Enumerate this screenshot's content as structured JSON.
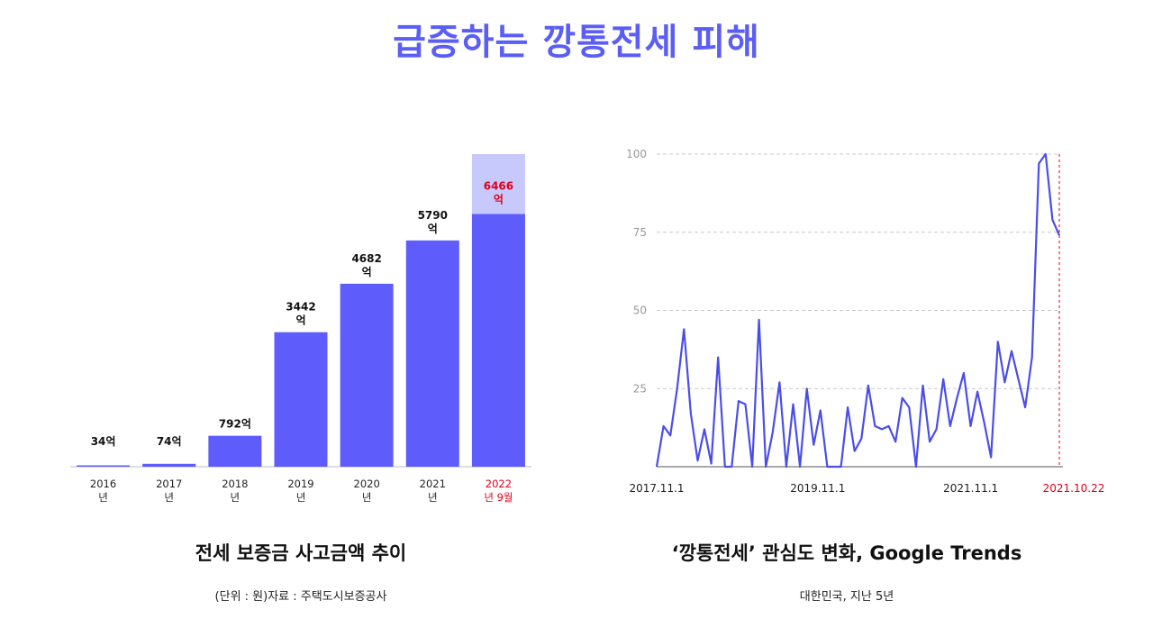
{
  "page_title": "급증하는 깡통전세 피해",
  "left_caption": {
    "title": "전세 보증금 사고금액 추이",
    "source": "(단위 : 원)자료 : 주택도시보증공사"
  },
  "right_caption": {
    "title": "‘깡통전세’ 관심도 변화, Google Trends",
    "source": "대한민국, 지난 5년"
  },
  "colors": {
    "accent": "#5b5ef6",
    "bar": "#5e5cfb",
    "bar_light": "#c7c8fb",
    "highlight": "#e0001b",
    "line": "#4a4ee8",
    "grid": "#c8c8c8",
    "axis": "#999999"
  },
  "chart_data": [
    {
      "type": "bar",
      "title": "전세 보증금 사고금액 추이",
      "unit": "억",
      "categories": [
        "2016\n년",
        "2017\n년",
        "2018\n년",
        "2019\n년",
        "2020\n년",
        "2021\n년",
        "2022\n년 9월"
      ],
      "values": [
        34,
        74,
        792,
        3442,
        4682,
        5790,
        6466
      ],
      "labels": [
        "34억",
        "74억",
        "792억",
        "3442\n억",
        "4682\n억",
        "5790\n억",
        "6466\n억"
      ],
      "highlight_index": 6,
      "projected_total": 8000,
      "ylim": [
        0,
        8000
      ],
      "grid": false
    },
    {
      "type": "line",
      "title": "‘깡통전세’ 관심도 변화, Google Trends",
      "subtitle": "대한민국, 지난 5년",
      "x_labels": [
        "2017.11.1",
        "2019.11.1",
        "2021.11.1",
        "2021.10.22"
      ],
      "x_label_positions": [
        0,
        0.4,
        0.78,
        1.0
      ],
      "highlight_x_label": "2021.10.22",
      "yticks": [
        25,
        50,
        75,
        100
      ],
      "ylim": [
        0,
        100
      ],
      "grid": true,
      "values": [
        0,
        13,
        10,
        25,
        44,
        17,
        2,
        12,
        1,
        35,
        0,
        0,
        21,
        20,
        0,
        47,
        0,
        11,
        27,
        0,
        20,
        0,
        25,
        7,
        18,
        0,
        0,
        0,
        19,
        5,
        9,
        26,
        13,
        12,
        13,
        8,
        22,
        19,
        0,
        26,
        8,
        12,
        28,
        13,
        22,
        30,
        13,
        24,
        14,
        3,
        40,
        27,
        37,
        28,
        19,
        35,
        97,
        100,
        79,
        74
      ]
    }
  ]
}
